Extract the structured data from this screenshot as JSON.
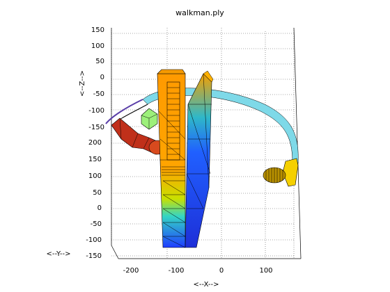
{
  "figure": {
    "title": "walkman.ply",
    "xlabel": "<--X-->",
    "ylabel": "<--Y-->",
    "zlabel": "<--Z-->"
  },
  "axes": {
    "z_ticks": [
      "150",
      "100",
      "50",
      "0",
      "-50",
      "-100",
      "-150"
    ],
    "y_ticks": [
      "200",
      "150",
      "100",
      "50",
      "0",
      "-50",
      "-100",
      "-150"
    ],
    "x_ticks": [
      "-200",
      "-100",
      "0",
      "100"
    ]
  },
  "colors": {
    "background": "#ffffff",
    "player_front": "#ffa500",
    "player_side": "#1e3cff",
    "headband": "#7ed9e8",
    "earpiece_left": "#c0301a",
    "earpiece_right": "#f5d000",
    "cube": "#9cf07a"
  }
}
